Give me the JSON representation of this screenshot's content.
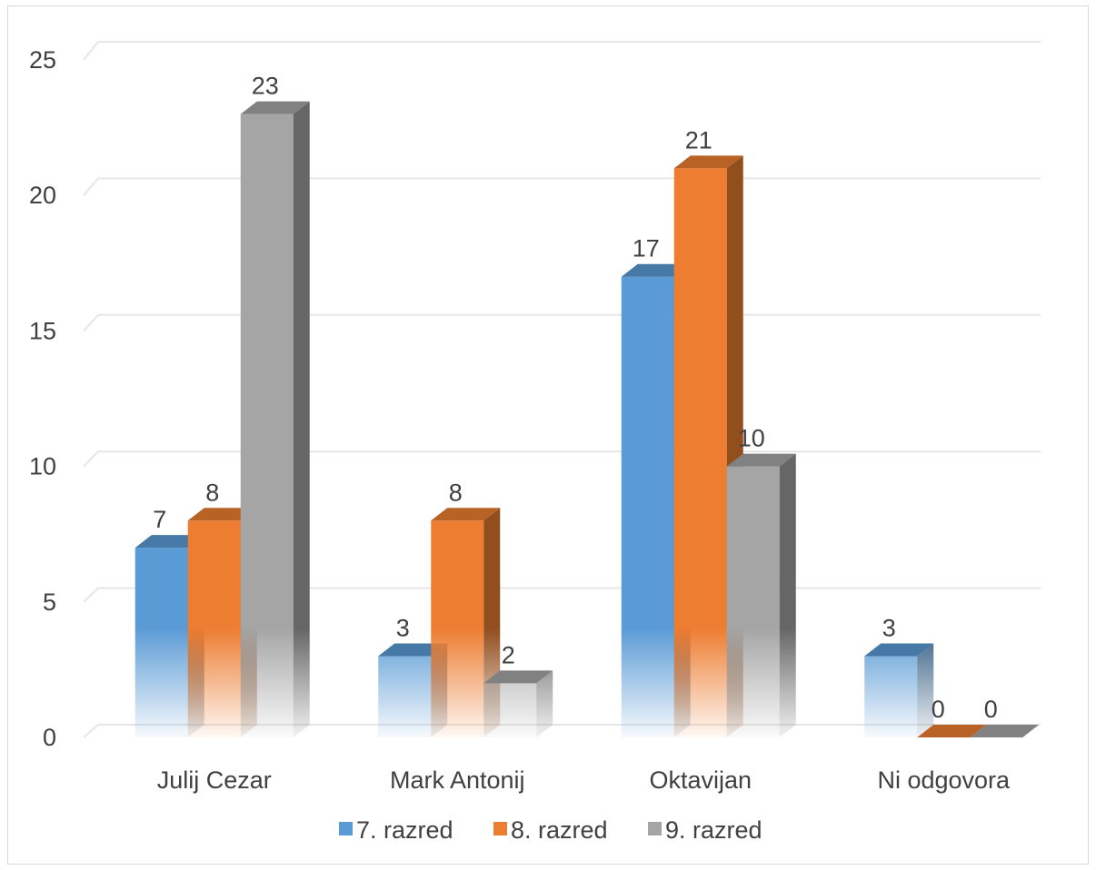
{
  "chart_data": {
    "type": "bar",
    "style": "3d-clustered-column",
    "categories": [
      "Julij Cezar",
      "Mark Antonij",
      "Oktavijan",
      "Ni odgovora"
    ],
    "series": [
      {
        "name": "7. razred",
        "values": [
          7,
          3,
          17,
          3
        ],
        "color": "#5b9bd5"
      },
      {
        "name": "8. razred",
        "values": [
          8,
          8,
          21,
          0
        ],
        "color": "#ed7d31"
      },
      {
        "name": "9. razred",
        "values": [
          23,
          2,
          10,
          0
        ],
        "color": "#a5a5a5"
      }
    ],
    "ylim": [
      0,
      25
    ],
    "yticks": [
      0,
      5,
      10,
      15,
      20,
      25
    ],
    "grid": true,
    "data_labels": true,
    "legend_position": "bottom"
  }
}
